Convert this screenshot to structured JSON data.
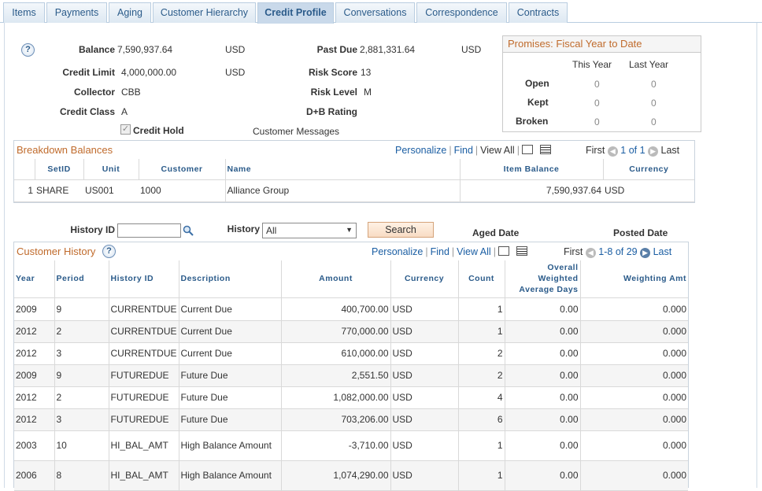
{
  "tabs": [
    "Items",
    "Payments",
    "Aging",
    "Customer Hierarchy",
    "Credit Profile",
    "Conversations",
    "Correspondence",
    "Contracts"
  ],
  "active_tab": "Credit Profile",
  "help_glyph": "?",
  "summary": {
    "balance_label": "Balance",
    "balance_value": "7,590,937.64",
    "balance_currency": "USD",
    "past_due_label": "Past Due",
    "past_due_value": "2,881,331.64",
    "past_due_currency": "USD",
    "credit_limit_label": "Credit Limit",
    "credit_limit_value": "4,000,000.00",
    "credit_limit_currency": "USD",
    "risk_score_label": "Risk Score",
    "risk_score_value": "13",
    "collector_label": "Collector",
    "collector_value": "CBB",
    "risk_level_label": "Risk Level",
    "risk_level_value": "M",
    "credit_class_label": "Credit Class",
    "credit_class_value": "A",
    "dnb_rating_label": "D+B Rating",
    "credit_hold_label": "Credit Hold",
    "credit_hold_checked": true,
    "customer_messages_link": "Customer Messages"
  },
  "promises": {
    "title": "Promises: Fiscal Year to Date",
    "col_this_year": "This Year",
    "col_last_year": "Last Year",
    "rows": [
      {
        "label": "Open",
        "this_year": "0",
        "last_year": "0"
      },
      {
        "label": "Kept",
        "this_year": "0",
        "last_year": "0"
      },
      {
        "label": "Broken",
        "this_year": "0",
        "last_year": "0"
      }
    ]
  },
  "breakdown": {
    "title": "Breakdown Balances",
    "nav": {
      "personalize": "Personalize",
      "find": "Find",
      "view_all": "View All",
      "first": "First",
      "range": "1 of 1",
      "last": "Last"
    },
    "headers": [
      "SetID",
      "Unit",
      "Customer",
      "Name",
      "Item Balance",
      "Currency"
    ],
    "rows": [
      {
        "num": "1",
        "setid": "SHARE",
        "unit": "US001",
        "customer": "1000",
        "name": "Alliance Group",
        "balance": "7,590,937.64",
        "currency": "USD"
      }
    ]
  },
  "history_search": {
    "history_id_label": "History ID",
    "history_id_value": "",
    "history_label": "History",
    "history_value": "All",
    "search_button": "Search",
    "aged_date_label": "Aged Date",
    "posted_date_label": "Posted Date"
  },
  "customer_history": {
    "title": "Customer History",
    "nav": {
      "personalize": "Personalize",
      "find": "Find",
      "view_all": "View All",
      "first": "First",
      "range": "1-8 of 29",
      "last": "Last"
    },
    "headers": {
      "year": "Year",
      "period": "Period",
      "history_id": "History ID",
      "description": "Description",
      "amount": "Amount",
      "currency": "Currency",
      "count": "Count",
      "owad_1": "Overall",
      "owad_2": "Weighted",
      "owad_3": "Average Days",
      "weighting": "Weighting Amt"
    },
    "rows": [
      {
        "year": "2009",
        "period": "9",
        "history_id": "CURRENTDUE",
        "description": "Current Due",
        "amount": "400,700.00",
        "currency": "USD",
        "count": "1",
        "owad": "0.00",
        "weighting": "0.000"
      },
      {
        "year": "2012",
        "period": "2",
        "history_id": "CURRENTDUE",
        "description": "Current Due",
        "amount": "770,000.00",
        "currency": "USD",
        "count": "1",
        "owad": "0.00",
        "weighting": "0.000"
      },
      {
        "year": "2012",
        "period": "3",
        "history_id": "CURRENTDUE",
        "description": "Current Due",
        "amount": "610,000.00",
        "currency": "USD",
        "count": "2",
        "owad": "0.00",
        "weighting": "0.000"
      },
      {
        "year": "2009",
        "period": "9",
        "history_id": "FUTUREDUE",
        "description": "Future Due",
        "amount": "2,551.50",
        "currency": "USD",
        "count": "2",
        "owad": "0.00",
        "weighting": "0.000"
      },
      {
        "year": "2012",
        "period": "2",
        "history_id": "FUTUREDUE",
        "description": "Future Due",
        "amount": "1,082,000.00",
        "currency": "USD",
        "count": "4",
        "owad": "0.00",
        "weighting": "0.000"
      },
      {
        "year": "2012",
        "period": "3",
        "history_id": "FUTUREDUE",
        "description": "Future Due",
        "amount": "703,206.00",
        "currency": "USD",
        "count": "6",
        "owad": "0.00",
        "weighting": "0.000"
      },
      {
        "year": "2003",
        "period": "10",
        "history_id": "HI_BAL_AMT",
        "description": "High Balance Amount",
        "amount": "-3,710.00",
        "currency": "USD",
        "count": "1",
        "owad": "0.00",
        "weighting": "0.000"
      },
      {
        "year": "2006",
        "period": "8",
        "history_id": "HI_BAL_AMT",
        "description": "High Balance Amount",
        "amount": "1,074,290.00",
        "currency": "USD",
        "count": "1",
        "owad": "0.00",
        "weighting": "0.000"
      }
    ]
  }
}
